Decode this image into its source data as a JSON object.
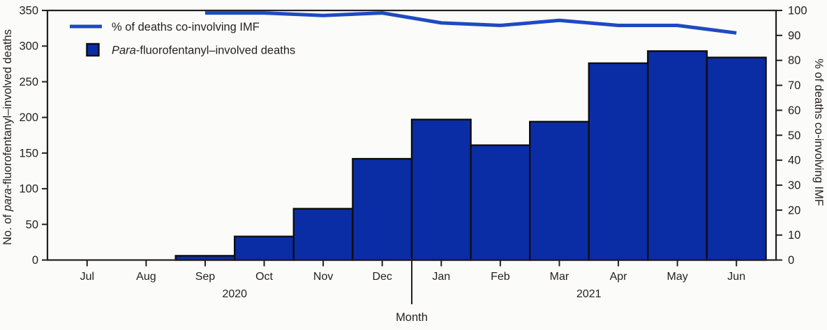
{
  "figure": {
    "background": "#fbfbf9"
  },
  "colors": {
    "bar_fill": "#0a2da5",
    "bar_stroke": "#0d0d0d",
    "line": "#1e4ac2",
    "axis": "#231f20",
    "text": "#231f20"
  },
  "legend": {
    "items": [
      {
        "swatch": "line",
        "label_parts": [
          {
            "t": "% of deaths co-involving IMF",
            "i": false
          }
        ]
      },
      {
        "swatch": "square",
        "label_parts": [
          {
            "t": "Para",
            "i": true
          },
          {
            "t": "-fluorofentanyl–involved deaths",
            "i": false
          }
        ]
      }
    ]
  },
  "chart_data": {
    "type": "bar",
    "subtype": "bar+line combo, dual y-axes",
    "categories": [
      "Jul",
      "Aug",
      "Sep",
      "Oct",
      "Nov",
      "Dec",
      "Jan",
      "Feb",
      "Mar",
      "Apr",
      "May",
      "Jun"
    ],
    "year_groups": [
      {
        "label": "2020",
        "start_index": 0,
        "end_index": 5
      },
      {
        "label": "2021",
        "start_index": 6,
        "end_index": 11
      }
    ],
    "series": [
      {
        "name": "Para-fluorofentanyl–involved deaths",
        "type": "bar",
        "axis": "left",
        "values": [
          0,
          0,
          6,
          33,
          72,
          142,
          197,
          161,
          194,
          276,
          293,
          284
        ]
      },
      {
        "name": "% of deaths co-involving IMF",
        "type": "line",
        "axis": "right",
        "values": [
          null,
          null,
          99,
          99,
          98,
          99,
          95,
          94,
          96,
          94,
          94,
          91
        ]
      }
    ],
    "xlabel": "Month",
    "ylabel_left": "No. of para-fluorofentanyl–involved deaths",
    "ylabel_left_parts": [
      {
        "t": "No. of ",
        "i": false
      },
      {
        "t": "para",
        "i": true
      },
      {
        "t": "-fluorofentanyl–involved deaths",
        "i": false
      }
    ],
    "ylabel_right": "% of deaths co-involving IMF",
    "ylabel_right_parts": [
      {
        "t": "% of deaths co-involving IMF",
        "i": false
      }
    ],
    "ylim_left": [
      0,
      350
    ],
    "ylim_right": [
      0,
      100
    ],
    "yticks_left": [
      0,
      50,
      100,
      150,
      200,
      250,
      300,
      350
    ],
    "yticks_right": [
      0,
      10,
      20,
      30,
      40,
      50,
      60,
      70,
      80,
      90,
      100
    ],
    "grid": false,
    "legend_position": "top-left inside plot"
  }
}
